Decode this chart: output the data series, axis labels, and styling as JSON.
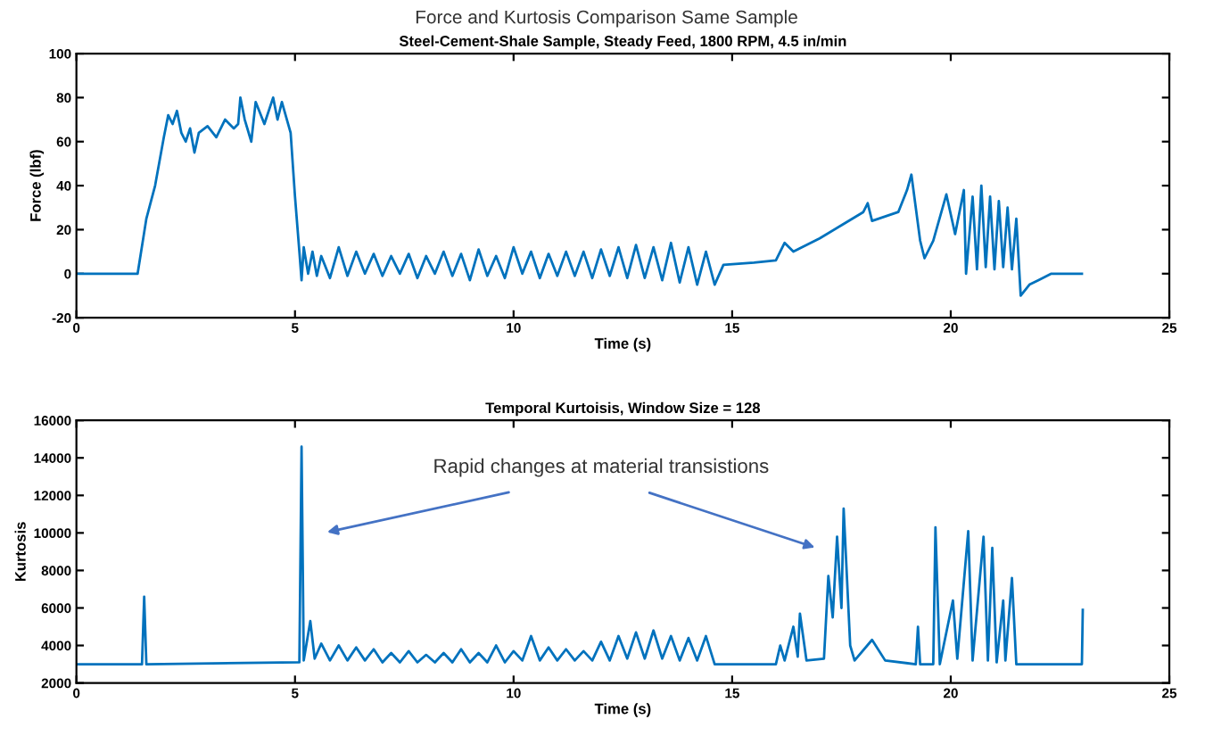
{
  "chart_data": [
    {
      "type": "line",
      "title": "Force and Kurtosis Comparison Same Sample",
      "subtitle": "Steel-Cement-Shale Sample, Steady Feed, 1800 RPM, 4.5 in/min",
      "xlabel": "Time (s)",
      "ylabel": "Force (lbf)",
      "xlim": [
        0,
        25
      ],
      "ylim": [
        -20,
        100
      ],
      "xticks": [
        0,
        5,
        10,
        15,
        20,
        25
      ],
      "yticks": [
        -20,
        0,
        20,
        40,
        60,
        80,
        100
      ],
      "grid": false,
      "legend": false,
      "series": [
        {
          "color": "#0072bd",
          "x": [
            0,
            1.4,
            1.6,
            1.8,
            2.0,
            2.1,
            2.2,
            2.3,
            2.4,
            2.5,
            2.6,
            2.7,
            2.8,
            3.0,
            3.2,
            3.4,
            3.6,
            3.7,
            3.75,
            3.85,
            4.0,
            4.1,
            4.3,
            4.5,
            4.6,
            4.7,
            4.9,
            5.0,
            5.1,
            5.15,
            5.2,
            5.3,
            5.4,
            5.5,
            5.6,
            5.8,
            6.0,
            6.2,
            6.4,
            6.6,
            6.8,
            7.0,
            7.2,
            7.4,
            7.6,
            7.8,
            8.0,
            8.2,
            8.4,
            8.6,
            8.8,
            9.0,
            9.2,
            9.4,
            9.6,
            9.8,
            10.0,
            10.2,
            10.4,
            10.6,
            10.8,
            11.0,
            11.2,
            11.4,
            11.6,
            11.8,
            12.0,
            12.2,
            12.4,
            12.6,
            12.8,
            13.0,
            13.2,
            13.4,
            13.6,
            13.8,
            14.0,
            14.2,
            14.4,
            14.6,
            14.8,
            15.5,
            16.0,
            16.2,
            16.4,
            17.0,
            17.5,
            18.0,
            18.1,
            18.2,
            18.5,
            18.8,
            19.0,
            19.1,
            19.3,
            19.4,
            19.6,
            19.9,
            20.1,
            20.3,
            20.35,
            20.5,
            20.6,
            20.7,
            20.8,
            20.9,
            21.0,
            21.1,
            21.2,
            21.3,
            21.4,
            21.5,
            21.6,
            21.8,
            22.0,
            22.3,
            23.0
          ],
          "values": [
            0,
            0,
            25,
            40,
            62,
            72,
            68,
            74,
            64,
            60,
            66,
            55,
            64,
            67,
            62,
            70,
            66,
            68,
            80,
            70,
            60,
            78,
            68,
            80,
            70,
            78,
            64,
            35,
            10,
            -3,
            12,
            0,
            10,
            -1,
            8,
            -2,
            12,
            -1,
            10,
            0,
            9,
            -1,
            8,
            0,
            9,
            -2,
            8,
            0,
            10,
            -1,
            9,
            -3,
            11,
            -1,
            8,
            -2,
            12,
            0,
            10,
            -2,
            9,
            -1,
            10,
            -1,
            10,
            -2,
            11,
            -1,
            12,
            -2,
            13,
            -2,
            12,
            -3,
            14,
            -4,
            12,
            -5,
            10,
            -5,
            4,
            5,
            6,
            14,
            10,
            16,
            22,
            28,
            32,
            24,
            26,
            28,
            38,
            45,
            15,
            7,
            15,
            36,
            18,
            38,
            0,
            35,
            2,
            40,
            3,
            35,
            2,
            33,
            3,
            30,
            2,
            25,
            -10,
            -5,
            -3,
            0,
            0
          ]
        }
      ]
    },
    {
      "type": "line",
      "title": "Temporal Kurtoisis, Window Size = 128",
      "xlabel": "Time (s)",
      "ylabel": "Kurtosis",
      "xlim": [
        0,
        25
      ],
      "ylim": [
        2000,
        16000
      ],
      "xticks": [
        0,
        5,
        10,
        15,
        20,
        25
      ],
      "yticks": [
        2000,
        4000,
        6000,
        8000,
        10000,
        12000,
        14000,
        16000
      ],
      "grid": false,
      "legend": false,
      "annotations": [
        "Rapid changes at material transistions"
      ],
      "series": [
        {
          "color": "#0072bd",
          "x": [
            0,
            1.5,
            1.55,
            1.6,
            5.1,
            5.15,
            5.2,
            5.35,
            5.45,
            5.6,
            5.8,
            6.0,
            6.2,
            6.4,
            6.6,
            6.8,
            7.0,
            7.2,
            7.4,
            7.6,
            7.8,
            8.0,
            8.2,
            8.4,
            8.6,
            8.8,
            9.0,
            9.2,
            9.4,
            9.6,
            9.8,
            10.0,
            10.2,
            10.4,
            10.6,
            10.8,
            11.0,
            11.2,
            11.4,
            11.6,
            11.8,
            12.0,
            12.2,
            12.4,
            12.6,
            12.8,
            13.0,
            13.2,
            13.4,
            13.6,
            13.8,
            14.0,
            14.2,
            14.4,
            14.6,
            16.0,
            16.1,
            16.2,
            16.4,
            16.5,
            16.55,
            16.7,
            17.1,
            17.2,
            17.3,
            17.4,
            17.5,
            17.55,
            17.7,
            17.8,
            18.2,
            18.5,
            19.2,
            19.25,
            19.3,
            19.6,
            19.65,
            19.75,
            20.05,
            20.15,
            20.4,
            20.5,
            20.75,
            20.85,
            20.95,
            21.05,
            21.2,
            21.25,
            21.4,
            21.5,
            23.0,
            23.02
          ],
          "values": [
            3000,
            3000,
            6600,
            3000,
            3100,
            14600,
            3200,
            5300,
            3300,
            4100,
            3200,
            4000,
            3200,
            3900,
            3200,
            3800,
            3100,
            3600,
            3100,
            3700,
            3100,
            3500,
            3100,
            3600,
            3100,
            3800,
            3100,
            3600,
            3100,
            4000,
            3100,
            3700,
            3200,
            4500,
            3200,
            3900,
            3200,
            3800,
            3200,
            3700,
            3200,
            4200,
            3200,
            4500,
            3300,
            4700,
            3300,
            4800,
            3300,
            4500,
            3200,
            4400,
            3200,
            4500,
            3000,
            3000,
            4000,
            3200,
            5000,
            3400,
            5700,
            3200,
            3300,
            7700,
            5500,
            9800,
            6000,
            11300,
            4000,
            3200,
            4300,
            3200,
            3000,
            5000,
            3000,
            3000,
            10300,
            3000,
            6400,
            3300,
            10100,
            3200,
            9800,
            3200,
            9200,
            3100,
            6400,
            3200,
            7600,
            3000,
            3000,
            5900
          ]
        }
      ]
    }
  ]
}
